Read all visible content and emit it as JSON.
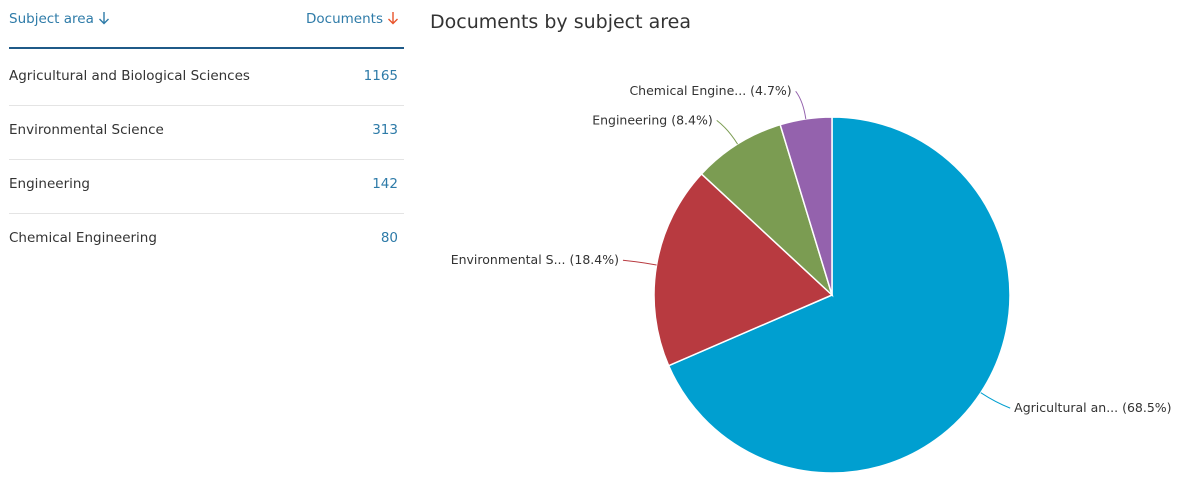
{
  "table": {
    "header": [
      "Subject area",
      "Documents"
    ],
    "rows": [
      [
        "Agricultural and Biological Sciences",
        "1165"
      ],
      [
        "Environmental Science",
        "313"
      ],
      [
        "Engineering",
        "142"
      ],
      [
        "Chemical Engineering",
        "80"
      ]
    ]
  },
  "chart_data": {
    "type": "pie",
    "title": "Documents by subject area",
    "categories": [
      "Agricultural an...",
      "Environmental S...",
      "Engineering",
      "Chemical Engine..."
    ],
    "values": [
      68.5,
      18.4,
      8.4,
      4.7
    ],
    "value_labels": [
      "(68.5%)",
      "(18.4%)",
      "(8.4%)",
      "(4.7%)"
    ],
    "colors": [
      "#009fd0",
      "#b83a40",
      "#7b9c52",
      "#9462ad"
    ]
  }
}
